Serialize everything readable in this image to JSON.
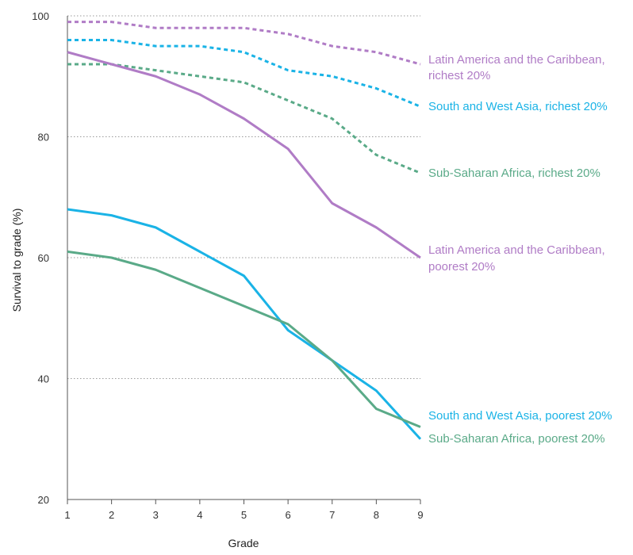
{
  "chart_data": {
    "type": "line",
    "title": "",
    "xlabel": "Grade",
    "ylabel": "Survival to grade (%)",
    "x": [
      1,
      2,
      3,
      4,
      5,
      6,
      7,
      8,
      9
    ],
    "x_ticks": [
      "1",
      "2",
      "3",
      "4",
      "5",
      "6",
      "7",
      "8",
      "9"
    ],
    "y_ticks": [
      "20",
      "40",
      "60",
      "80",
      "100"
    ],
    "xlim": [
      1,
      9
    ],
    "ylim": [
      20,
      100
    ],
    "grid": "horizontal dotted",
    "legend": "labels at line ends (right)",
    "series": [
      {
        "name": "Latin America and the Caribbean, richest 20%",
        "label_lines": [
          "Latin America and the Caribbean,",
          "richest 20%"
        ],
        "color": "#b07cc6",
        "style": "dashed",
        "values": [
          99,
          99,
          98,
          98,
          98,
          97,
          95,
          94,
          92
        ]
      },
      {
        "name": "South and West Asia, richest 20%",
        "label_lines": [
          "South and West Asia, richest 20%"
        ],
        "color": "#1ab3e6",
        "style": "dashed",
        "values": [
          96,
          96,
          95,
          95,
          94,
          91,
          90,
          88,
          85
        ]
      },
      {
        "name": "Sub-Saharan Africa, richest 20%",
        "label_lines": [
          "Sub-Saharan Africa, richest 20%"
        ],
        "color": "#5aaa88",
        "style": "dashed",
        "values": [
          92,
          92,
          91,
          90,
          89,
          86,
          83,
          77,
          74
        ]
      },
      {
        "name": "Latin America and the Caribbean, poorest 20%",
        "label_lines": [
          "Latin America and the Caribbean,",
          "poorest 20%"
        ],
        "color": "#b07cc6",
        "style": "solid",
        "values": [
          94,
          92,
          90,
          87,
          83,
          78,
          69,
          65,
          60
        ]
      },
      {
        "name": "South and West Asia, poorest 20%",
        "label_lines": [
          "South and West Asia, poorest 20%"
        ],
        "color": "#1ab3e6",
        "style": "solid",
        "values": [
          68,
          67,
          65,
          61,
          57,
          48,
          43,
          38,
          30
        ]
      },
      {
        "name": "Sub-Saharan Africa, poorest 20%",
        "label_lines": [
          "Sub-Saharan Africa, poorest 20%"
        ],
        "color": "#5aaa88",
        "style": "solid",
        "values": [
          61,
          60,
          58,
          55,
          52,
          49,
          43,
          35,
          32
        ]
      }
    ]
  }
}
